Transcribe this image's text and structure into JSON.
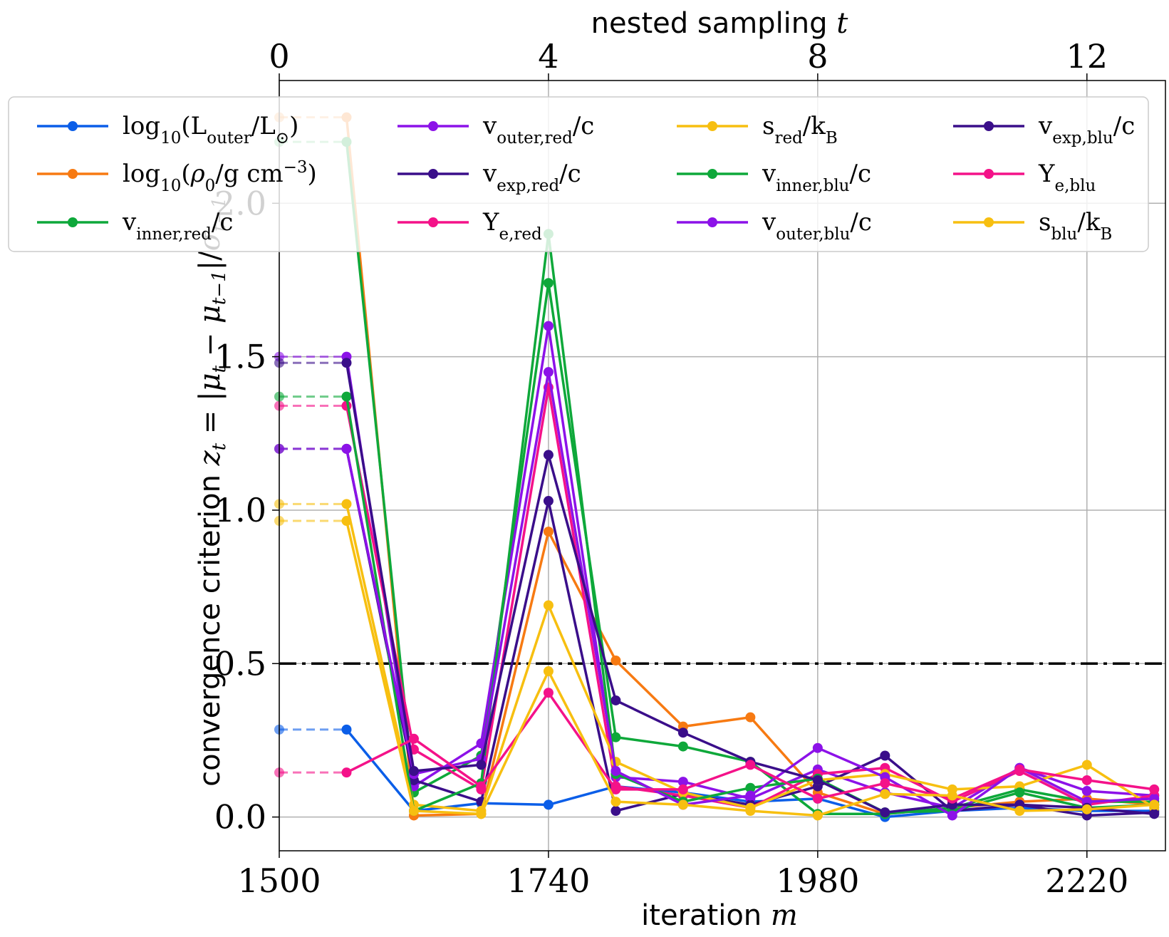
{
  "chart_data": {
    "type": "line",
    "xlabel": "iteration m",
    "x2label": "nested sampling t",
    "ylabel": "convergence criterion z_t = |μ_t − μ_{t−1}|/σ_{t−1}",
    "xlim": [
      1500,
      2290
    ],
    "ylim": [
      -0.11,
      2.4
    ],
    "x_ticks": [
      1500,
      1740,
      1980,
      2220
    ],
    "x2_ticks": [
      0,
      4,
      8,
      12
    ],
    "y_ticks": [
      0.0,
      0.5,
      1.0,
      1.5,
      2.0
    ],
    "x2_mapping": {
      "x_at_t0": 1500,
      "x_per_t": 60
    },
    "grid": true,
    "legend_position": "upper",
    "threshold": {
      "y": 0.5,
      "style": "dash-dot",
      "color": "#000000"
    },
    "x": [
      1560,
      1620,
      1680,
      1740,
      1800,
      1860,
      1920,
      1980,
      2040,
      2100,
      2160,
      2220,
      2280
    ],
    "series": [
      {
        "name": "log10(L_outer/L_⊙)",
        "color": "#0b5ee8",
        "initial": 0.285,
        "values": [
          0.285,
          0.02,
          0.045,
          0.04,
          0.1,
          0.08,
          0.05,
          0.06,
          0.0,
          0.02,
          0.03,
          0.02,
          0.02
        ]
      },
      {
        "name": "log10(ρ0/g cm^−3)",
        "color": "#f77a12",
        "initial": 2.28,
        "values": [
          2.28,
          0.005,
          0.01,
          0.93,
          0.51,
          0.295,
          0.325,
          0.08,
          0.01,
          0.03,
          0.05,
          0.06,
          0.04
        ]
      },
      {
        "name": "v_inner,red/c",
        "color": "#0ea83a",
        "initial": 2.2,
        "values": [
          2.2,
          0.08,
          0.2,
          1.74,
          0.26,
          0.23,
          0.18,
          0.01,
          0.01,
          0.03,
          0.09,
          0.05,
          0.05
        ]
      },
      {
        "name": "v_outer,red/c",
        "color": "#8c12e8",
        "initial": 1.5,
        "values": [
          1.5,
          0.1,
          0.24,
          1.6,
          0.13,
          0.115,
          0.06,
          0.155,
          0.08,
          0.03,
          0.16,
          0.085,
          0.07
        ]
      },
      {
        "name": "v_exp,red/c",
        "color": "#3a0e8a",
        "initial": 1.2,
        "values": [
          1.2,
          0.12,
          0.05,
          1.03,
          0.02,
          0.075,
          0.04,
          0.1,
          0.2,
          0.02,
          0.04,
          0.005,
          0.015
        ]
      },
      {
        "name": "Y_e,red",
        "color": "#f41289",
        "initial": 1.34,
        "values": [
          1.34,
          0.22,
          0.09,
          1.4,
          0.1,
          0.07,
          0.03,
          0.14,
          0.16,
          0.05,
          0.15,
          0.04,
          0.07
        ]
      },
      {
        "name": "s_red/k_B",
        "color": "#f7bf10",
        "initial": 1.02,
        "values": [
          1.02,
          0.04,
          0.02,
          0.69,
          0.18,
          0.08,
          0.03,
          0.12,
          0.14,
          0.09,
          0.1,
          0.17,
          0.03
        ]
      },
      {
        "name": "v_inner,blu/c",
        "color": "#0ea83a",
        "initial": 1.37,
        "values": [
          1.37,
          0.02,
          0.11,
          1.9,
          0.14,
          0.05,
          0.095,
          0.125,
          0.015,
          0.02,
          0.08,
          0.03,
          0.04
        ]
      },
      {
        "name": "v_outer,blu/c",
        "color": "#8c12e8",
        "initial": 1.2,
        "values": [
          1.2,
          0.14,
          0.19,
          1.45,
          0.15,
          0.04,
          0.07,
          0.225,
          0.13,
          0.005,
          0.16,
          0.05,
          0.06
        ]
      },
      {
        "name": "v_exp,blu/c",
        "color": "#3a0e8a",
        "initial": 1.48,
        "values": [
          1.48,
          0.15,
          0.17,
          1.18,
          0.38,
          0.275,
          0.18,
          0.12,
          0.015,
          0.04,
          0.04,
          0.03,
          0.01
        ]
      },
      {
        "name": "Y_e,blu",
        "color": "#f41289",
        "initial": 0.145,
        "values": [
          0.145,
          0.255,
          0.1,
          0.405,
          0.09,
          0.09,
          0.17,
          0.06,
          0.11,
          0.06,
          0.155,
          0.12,
          0.09
        ]
      },
      {
        "name": "s_blu/k_B",
        "color": "#f7bf10",
        "initial": 0.965,
        "values": [
          0.965,
          0.02,
          0.01,
          0.475,
          0.05,
          0.04,
          0.02,
          0.005,
          0.075,
          0.07,
          0.02,
          0.025,
          0.04
        ]
      }
    ]
  }
}
